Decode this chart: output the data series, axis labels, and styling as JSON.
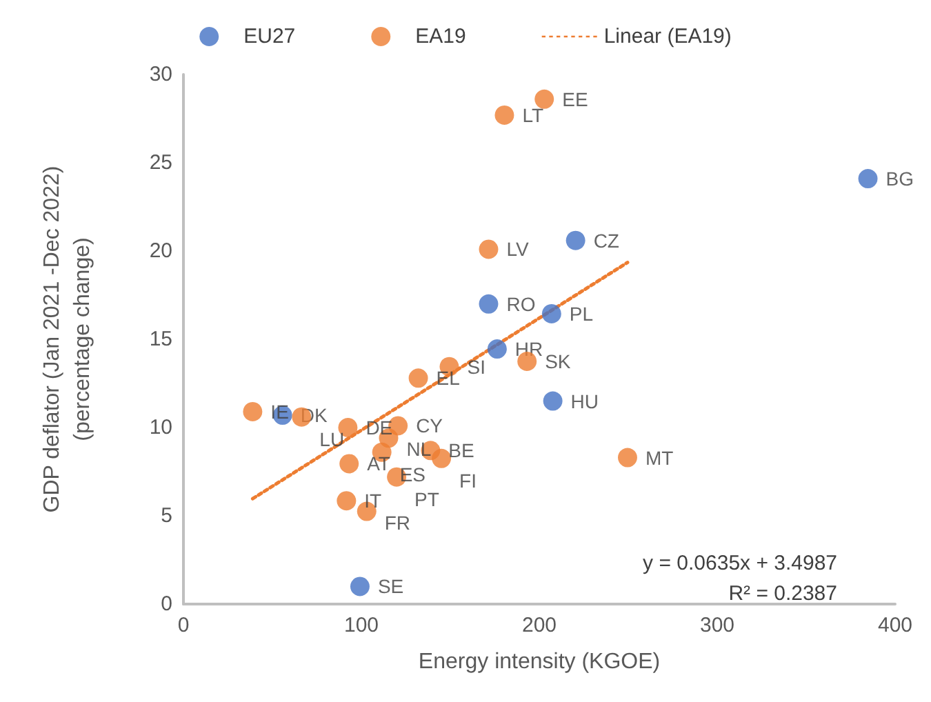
{
  "chart_data": {
    "type": "scatter",
    "xlabel": "Energy intensity (KGOE)",
    "ylabel": "GDP deflator (Jan 2021 -Dec 2022)\n(percentage change)",
    "xlim": [
      0,
      400
    ],
    "xticks": [
      0,
      100,
      200,
      300,
      400
    ],
    "ylim": [
      0,
      30
    ],
    "yticks": [
      0,
      5,
      10,
      15,
      20,
      25,
      30
    ],
    "grid": false,
    "legend": "top",
    "marker": "circle",
    "series": [
      {
        "name": "EU27",
        "color": "#4472c4",
        "x": [
          55.7,
          99.2,
          171.5,
          206.9,
          220.4,
          176.3,
          207.6,
          384.7
        ],
        "values": [
          10.7,
          1.0,
          17.0,
          16.45,
          20.6,
          14.45,
          11.5,
          24.1
        ],
        "value_labels": [
          "DK",
          "SE",
          "RO",
          "PL",
          "CZ",
          "HR",
          "HU",
          "BG"
        ]
      },
      {
        "name": "EA19",
        "color": "#ed7d31",
        "x": [
          38.9,
          66.4,
          92.4,
          120.6,
          115.3,
          111.5,
          138.9,
          145,
          93.1,
          119.8,
          91.6,
          103,
          202.8,
          180.4,
          171.5,
          149.4,
          193.1,
          132,
          249.6
        ],
        "values": [
          10.9,
          10.6,
          10.0,
          10.1,
          9.4,
          8.6,
          8.7,
          8.25,
          7.95,
          7.2,
          5.85,
          5.25,
          28.6,
          27.7,
          20.1,
          13.45,
          13.75,
          12.8,
          8.3
        ],
        "value_labels": [
          "IE",
          "LU",
          "DE",
          "CY",
          "NL",
          "ES",
          "BE",
          "FI",
          "AT",
          "PT",
          "IT",
          "FR",
          "EE",
          "LT",
          "LV",
          "SI",
          "SK",
          "EL",
          "MT"
        ]
      },
      {
        "name": "Linear (EA19)",
        "type": "line",
        "color": "#ed7d31",
        "line_style": "dotted",
        "marker": "none",
        "x": [
          38.9,
          249.6
        ],
        "values": [
          5.97,
          19.35
        ]
      }
    ],
    "annotations": [
      "y = 0.0635x + 3.4987",
      "R² = 0.2387"
    ]
  }
}
